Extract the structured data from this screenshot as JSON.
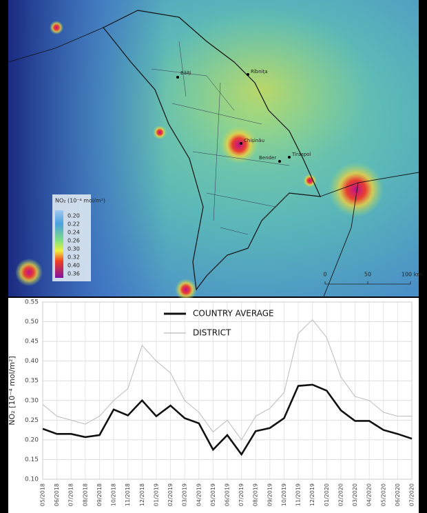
{
  "map": {
    "cities": [
      "Bălți",
      "Rîbnița",
      "Chișinău",
      "Bender",
      "Tiraspol"
    ],
    "legend_title": "NO₂ (10⁻⁴ mol/m²)",
    "legend_labels": [
      "0.20",
      "0.22",
      "0.24",
      "0.26",
      "0.30",
      "0.32",
      "0.40",
      "0.36"
    ],
    "scale_labels": [
      "0",
      "50",
      "100 km"
    ]
  },
  "chart_data": {
    "type": "line",
    "ylabel": "NO₂ [10⁻⁴ mol/m²]",
    "categories": [
      "05/2018",
      "06/2018",
      "07/2018",
      "08/2018",
      "09/2018",
      "10/2018",
      "11/2018",
      "12/2018",
      "01/2019",
      "02/2019",
      "03/2019",
      "04/2019",
      "05/2019",
      "06/2019",
      "07/2019",
      "08/2019",
      "09/2019",
      "10/2019",
      "11/2019",
      "12/2019",
      "01/2020",
      "02/2020",
      "03/2020",
      "04/2020",
      "05/2020",
      "06/2020",
      "07/2020"
    ],
    "series": [
      {
        "name": "COUNTRY AVERAGE",
        "color": "#111111",
        "values": [
          0.228,
          0.215,
          0.215,
          0.207,
          0.212,
          0.277,
          0.262,
          0.3,
          0.26,
          0.287,
          0.255,
          0.242,
          0.175,
          0.212,
          0.163,
          0.222,
          0.23,
          0.255,
          0.337,
          0.34,
          0.325,
          0.275,
          0.248,
          0.248,
          0.225,
          0.215,
          0.203
        ]
      },
      {
        "name": "DISTRICT",
        "color": "#bbbbbb",
        "values": [
          0.29,
          0.26,
          0.25,
          0.24,
          0.26,
          0.3,
          0.33,
          0.44,
          0.4,
          0.37,
          0.3,
          0.27,
          0.22,
          0.25,
          0.2,
          0.26,
          0.28,
          0.32,
          0.47,
          0.505,
          0.46,
          0.36,
          0.31,
          0.3,
          0.27,
          0.26,
          0.26
        ]
      }
    ],
    "ylim": [
      0.1,
      0.55
    ],
    "yticks": [
      {
        "value": 0.1,
        "label": "0.10"
      },
      {
        "value": 0.15,
        "label": "0.15"
      },
      {
        "value": 0.2,
        "label": "0.20"
      },
      {
        "value": 0.25,
        "label": "0.25"
      },
      {
        "value": 0.3,
        "label": "0.30"
      },
      {
        "value": 0.35,
        "label": "0.35"
      },
      {
        "value": 0.4,
        "label": "0.40"
      },
      {
        "value": 0.45,
        "label": "0.45"
      },
      {
        "value": 0.5,
        "label": "0.50"
      },
      {
        "value": 0.55,
        "label": "0.55"
      }
    ],
    "grid": true,
    "legend": "top"
  }
}
